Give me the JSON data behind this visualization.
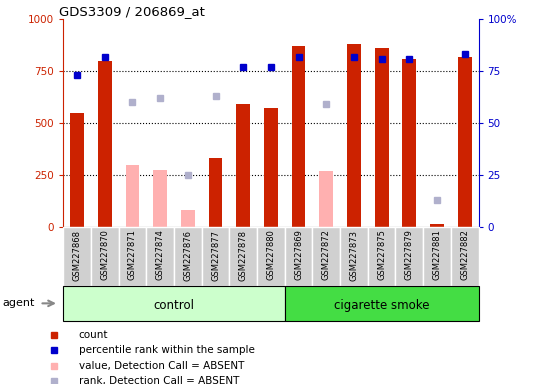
{
  "title": "GDS3309 / 206869_at",
  "samples": [
    "GSM227868",
    "GSM227870",
    "GSM227871",
    "GSM227874",
    "GSM227876",
    "GSM227877",
    "GSM227878",
    "GSM227880",
    "GSM227869",
    "GSM227872",
    "GSM227873",
    "GSM227875",
    "GSM227879",
    "GSM227881",
    "GSM227882"
  ],
  "count_values": [
    550,
    800,
    null,
    null,
    null,
    330,
    590,
    570,
    870,
    null,
    880,
    860,
    810,
    10,
    820
  ],
  "count_absent": [
    null,
    null,
    295,
    275,
    80,
    null,
    null,
    null,
    null,
    270,
    null,
    null,
    null,
    null,
    null
  ],
  "rank_values": [
    73,
    82,
    null,
    null,
    null,
    null,
    77,
    77,
    82,
    null,
    82,
    81,
    81,
    null,
    83
  ],
  "rank_absent": [
    null,
    null,
    60,
    62,
    25,
    63,
    null,
    null,
    null,
    59,
    null,
    null,
    null,
    13,
    null
  ],
  "n_control": 8,
  "n_smoke": 7,
  "ylim_left": [
    0,
    1000
  ],
  "ylim_right": [
    0,
    100
  ],
  "yticks_left": [
    0,
    250,
    500,
    750,
    1000
  ],
  "yticks_right": [
    0,
    25,
    50,
    75,
    100
  ],
  "count_color": "#cc2200",
  "count_absent_color": "#ffb0b0",
  "rank_color": "#0000cc",
  "rank_absent_color": "#b0b0cc",
  "control_bg": "#ccffcc",
  "smoke_bg": "#44dd44",
  "tick_bg": "#d0d0d0",
  "agent_label": "agent",
  "control_label": "control",
  "smoke_label": "cigarette smoke",
  "legend_items": [
    {
      "label": "count",
      "color": "#cc2200"
    },
    {
      "label": "percentile rank within the sample",
      "color": "#0000cc"
    },
    {
      "label": "value, Detection Call = ABSENT",
      "color": "#ffb0b0"
    },
    {
      "label": "rank, Detection Call = ABSENT",
      "color": "#b0b0cc"
    }
  ]
}
